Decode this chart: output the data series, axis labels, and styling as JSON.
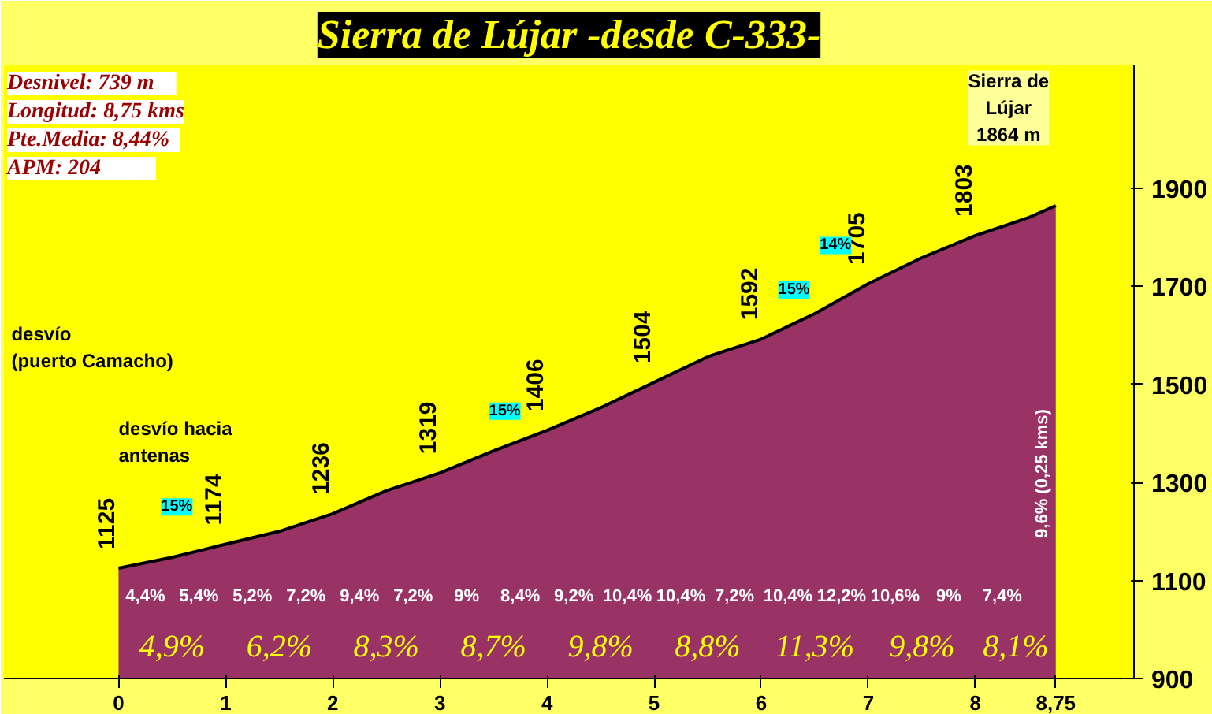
{
  "chart_data": {
    "type": "area",
    "title": "Sierra de Lújar -desde C-333-",
    "x": [
      0,
      0.5,
      1,
      1.5,
      2,
      2.5,
      3,
      3.5,
      4,
      4.5,
      5,
      5.5,
      6,
      6.5,
      7,
      7.5,
      8,
      8.5,
      8.75
    ],
    "values": [
      1125,
      1147,
      1174,
      1200,
      1236,
      1283,
      1319,
      1364,
      1406,
      1452,
      1504,
      1556,
      1592,
      1644,
      1705,
      1758,
      1803,
      1840,
      1864
    ],
    "value_labels": [
      "1125",
      null,
      "1174",
      null,
      "1236",
      null,
      "1319",
      null,
      "1406",
      null,
      "1504",
      null,
      "1592",
      null,
      "1705",
      null,
      "1803",
      null,
      null
    ],
    "color": "#993366",
    "xlim": [
      -1.07,
      9.48
    ],
    "ylim": [
      900,
      2150
    ],
    "xticks": [
      0,
      1,
      2,
      3,
      4,
      5,
      6,
      7,
      8,
      {
        "value": 8.75,
        "label": "8,75"
      }
    ],
    "yticks": [
      900,
      1100,
      1300,
      1500,
      1700,
      1900
    ],
    "grid": false,
    "annotations": [
      "Desnivel:     739 m",
      "Longitud: 8,75 kms",
      "Pte.Media:   8,44%",
      "APM:           204",
      "4,4%",
      "5,4%",
      "5,2%",
      "7,2%",
      "9,4%",
      "7,2%",
      "9%",
      "8,4%",
      "9,2%",
      "10,4%",
      "10,4%",
      "7,2%",
      "10,4%",
      "12,2%",
      "10,6%",
      "9%",
      "7,4%",
      "9,6% (0,25 kms)",
      "4,9%",
      "6,2%",
      "8,3%",
      "8,7%",
      "9,8%",
      "8,8%",
      "11,3%",
      "9,8%",
      "8,1%",
      "desvío\n(puerto Camacho)",
      "desvío hacia\nantenas",
      "Sierra de\nLújar\n1864 m",
      {
        "text": "15%",
        "x": 0.75,
        "y": 1160
      },
      {
        "text": "15%",
        "x": 3.4,
        "y": 1355
      },
      {
        "text": "15%",
        "x": 6.1,
        "y": 1602
      },
      {
        "text": "14%",
        "x": 6.9,
        "y": 1693
      }
    ]
  }
}
